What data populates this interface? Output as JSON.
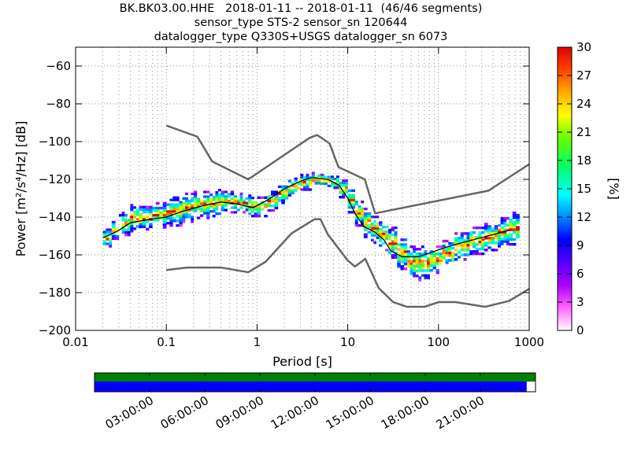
{
  "title_lines": [
    "BK.BK03.00.HHE   2018-01-11 -- 2018-01-11  (46/46 segments)",
    "sensor_type STS-2 sensor_sn 120644",
    "datalogger_type Q330S+USGS datalogger_sn 6073"
  ],
  "chart_data": {
    "type": "heatmap",
    "x_scale": "log",
    "xlim": [
      0.01,
      1000
    ],
    "ylim": [
      -200,
      -50
    ],
    "xlabel": "Period [s]",
    "ylabel": "Power [m²/s⁴/Hz] [dB]",
    "x_ticks": [
      0.01,
      0.1,
      1,
      10,
      100,
      1000
    ],
    "x_tick_labels": [
      "0.01",
      "0.1",
      "1",
      "10",
      "100",
      "1000"
    ],
    "y_ticks": [
      -200,
      -180,
      -160,
      -140,
      -120,
      -100,
      -80,
      -60
    ],
    "y_tick_labels": [
      "−200",
      "−180",
      "−160",
      "−140",
      "−120",
      "−100",
      "−80",
      "−60"
    ],
    "grid": true,
    "colorbar": {
      "label": "[%]",
      "range": [
        0,
        30
      ],
      "ticks": [
        "0",
        "3",
        "6",
        "9",
        "12",
        "15",
        "18",
        "21",
        "24",
        "27",
        "30"
      ]
    },
    "noise_models": [
      {
        "name": "high",
        "points": [
          [
            0.1,
            -91.5
          ],
          [
            0.22,
            -97.4
          ],
          [
            0.32,
            -110.5
          ],
          [
            0.8,
            -120
          ],
          [
            3.8,
            -98
          ],
          [
            4.6,
            -96.5
          ],
          [
            6.3,
            -101
          ],
          [
            7.9,
            -113.5
          ],
          [
            15.4,
            -120
          ],
          [
            20,
            -138
          ],
          [
            354.8,
            -126
          ],
          [
            1000,
            -112
          ]
        ]
      },
      {
        "name": "low",
        "points": [
          [
            0.1,
            -168
          ],
          [
            0.17,
            -166.7
          ],
          [
            0.4,
            -166.7
          ],
          [
            0.8,
            -169.2
          ],
          [
            1.24,
            -163.7
          ],
          [
            2.4,
            -148.6
          ],
          [
            4.3,
            -141.1
          ],
          [
            5,
            -141.1
          ],
          [
            6,
            -149
          ],
          [
            10,
            -163
          ],
          [
            12,
            -166.2
          ],
          [
            15.6,
            -162.1
          ],
          [
            21.9,
            -177.5
          ],
          [
            31.6,
            -185
          ],
          [
            45,
            -187.5
          ],
          [
            70,
            -187.5
          ],
          [
            101,
            -185
          ],
          [
            154,
            -185
          ],
          [
            328,
            -187.5
          ],
          [
            600,
            -184.4
          ],
          [
            1000,
            -178
          ]
        ]
      }
    ],
    "psd_mode": {
      "points": [
        [
          0.02,
          -151
        ],
        [
          0.03,
          -147
        ],
        [
          0.04,
          -143
        ],
        [
          0.07,
          -141
        ],
        [
          0.1,
          -140
        ],
        [
          0.15,
          -137
        ],
        [
          0.25,
          -134
        ],
        [
          0.4,
          -132
        ],
        [
          0.6,
          -133
        ],
        [
          0.9,
          -135
        ],
        [
          1.3,
          -131
        ],
        [
          2,
          -125
        ],
        [
          3,
          -121
        ],
        [
          4,
          -119
        ],
        [
          6,
          -120
        ],
        [
          8,
          -123
        ],
        [
          10,
          -130
        ],
        [
          12,
          -138
        ],
        [
          15,
          -145
        ],
        [
          20,
          -148
        ],
        [
          25,
          -152
        ],
        [
          30,
          -158
        ],
        [
          40,
          -161
        ],
        [
          60,
          -161
        ],
        [
          80,
          -159
        ],
        [
          120,
          -156
        ],
        [
          200,
          -153
        ],
        [
          350,
          -150
        ],
        [
          600,
          -147
        ]
      ]
    },
    "density_cells": [
      {
        "x": 0.02,
        "y_min": -156,
        "y_max": -146
      },
      {
        "x": 0.025,
        "y_min": -152,
        "y_max": -142
      },
      {
        "x": 0.03,
        "y_min": -150,
        "y_max": -137
      },
      {
        "x": 0.04,
        "y_min": -148,
        "y_max": -133
      },
      {
        "x": 0.05,
        "y_min": -147,
        "y_max": -134
      },
      {
        "x": 0.07,
        "y_min": -146,
        "y_max": -132
      },
      {
        "x": 0.1,
        "y_min": -145,
        "y_max": -129
      },
      {
        "x": 0.15,
        "y_min": -143,
        "y_max": -127
      },
      {
        "x": 0.2,
        "y_min": -141,
        "y_max": -126
      },
      {
        "x": 0.3,
        "y_min": -140,
        "y_max": -125
      },
      {
        "x": 0.4,
        "y_min": -138,
        "y_max": -126
      },
      {
        "x": 0.6,
        "y_min": -138,
        "y_max": -127
      },
      {
        "x": 0.8,
        "y_min": -140,
        "y_max": -128
      },
      {
        "x": 1.0,
        "y_min": -140,
        "y_max": -129
      },
      {
        "x": 1.3,
        "y_min": -137,
        "y_max": -126
      },
      {
        "x": 1.7,
        "y_min": -133,
        "y_max": -122
      },
      {
        "x": 2.2,
        "y_min": -129,
        "y_max": -119
      },
      {
        "x": 3.0,
        "y_min": -126,
        "y_max": -117
      },
      {
        "x": 4.0,
        "y_min": -124,
        "y_max": -116
      },
      {
        "x": 5.0,
        "y_min": -124,
        "y_max": -117
      },
      {
        "x": 6.5,
        "y_min": -125,
        "y_max": -118
      },
      {
        "x": 8.0,
        "y_min": -130,
        "y_max": -120
      },
      {
        "x": 10,
        "y_min": -138,
        "y_max": -124
      },
      {
        "x": 12,
        "y_min": -145,
        "y_max": -130
      },
      {
        "x": 15,
        "y_min": -151,
        "y_max": -135
      },
      {
        "x": 18,
        "y_min": -154,
        "y_max": -138
      },
      {
        "x": 22,
        "y_min": -158,
        "y_max": -141
      },
      {
        "x": 28,
        "y_min": -162,
        "y_max": -145
      },
      {
        "x": 35,
        "y_min": -168,
        "y_max": -150
      },
      {
        "x": 45,
        "y_min": -173,
        "y_max": -155
      },
      {
        "x": 60,
        "y_min": -174,
        "y_max": -155
      },
      {
        "x": 80,
        "y_min": -170,
        "y_max": -155
      },
      {
        "x": 110,
        "y_min": -166,
        "y_max": -152
      },
      {
        "x": 150,
        "y_min": -163,
        "y_max": -148
      },
      {
        "x": 220,
        "y_min": -160,
        "y_max": -145
      },
      {
        "x": 320,
        "y_min": -158,
        "y_max": -143
      },
      {
        "x": 450,
        "y_min": -156,
        "y_max": -140
      },
      {
        "x": 600,
        "y_min": -155,
        "y_max": -137
      }
    ]
  },
  "timeline": {
    "tick_labels": [
      "03:00:00",
      "06:00:00",
      "09:00:00",
      "12:00:00",
      "15:00:00",
      "18:00:00",
      "21:00:00"
    ],
    "coverage_fraction": 0.98,
    "colors": {
      "top_bar": "#007f00",
      "bottom_bar": "#0000ff"
    }
  },
  "colors": {
    "noise_model": "#666666",
    "mode_line": "#000000",
    "grid": "#666666"
  }
}
